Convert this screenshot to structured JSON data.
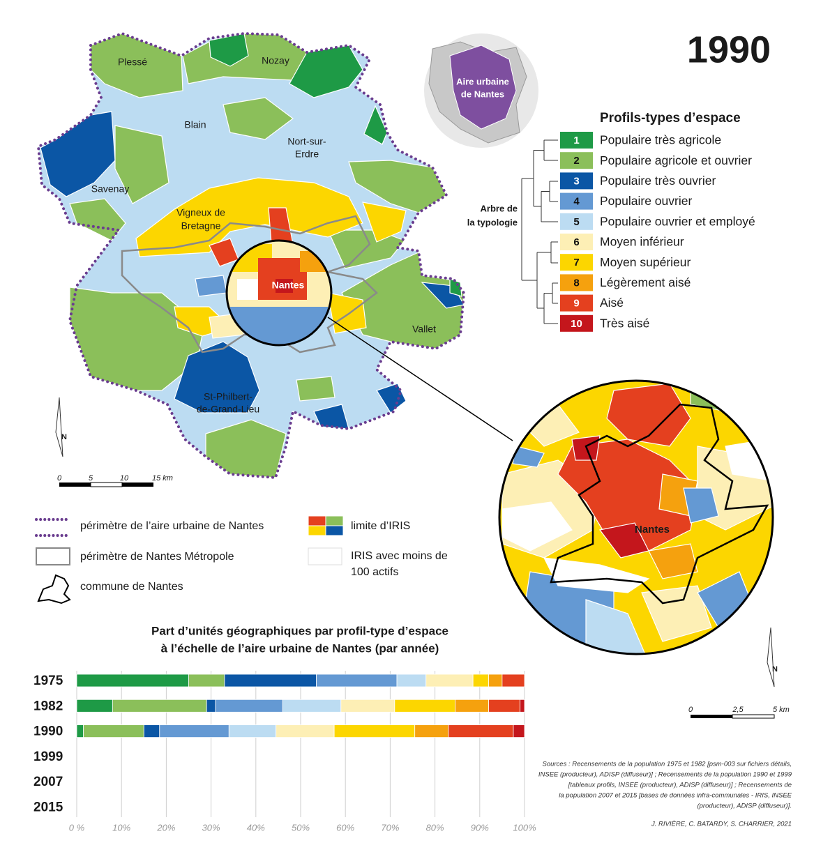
{
  "title": "1990",
  "inset": {
    "lines": [
      "Aire urbaine",
      "de Nantes"
    ]
  },
  "map_labels": [
    {
      "lines": [
        "Plessé"
      ]
    },
    {
      "lines": [
        "Nozay"
      ]
    },
    {
      "lines": [
        "Blain"
      ]
    },
    {
      "lines": [
        "Nort-sur-",
        "Erdre"
      ]
    },
    {
      "lines": [
        "Savenay"
      ]
    },
    {
      "lines": [
        "Vigneux de",
        "Bretagne"
      ]
    },
    {
      "lines": [
        "Nantes"
      ]
    },
    {
      "lines": [
        "Vallet"
      ]
    },
    {
      "lines": [
        "St-Philbert-",
        "de-Grand-Lieu"
      ]
    }
  ],
  "zoom_label": "Nantes",
  "north_arrow": "N",
  "scale_main": [
    "0",
    "5",
    "10",
    "15 km"
  ],
  "scale_zoom": [
    "0",
    "2,5",
    "5 km"
  ],
  "typology": {
    "title": "Profils-types d’espace",
    "tree_label": [
      "Arbre de",
      "la typologie"
    ]
  },
  "legend": [
    {
      "lines": [
        "périmètre de l’aire urbaine de Nantes"
      ]
    },
    {
      "lines": [
        "périmètre de Nantes Métropole"
      ]
    },
    {
      "lines": [
        "commune de Nantes"
      ]
    },
    {
      "lines": [
        "limite d’IRIS"
      ]
    },
    {
      "lines": [
        "IRIS avec moins de",
        "100 actifs"
      ]
    }
  ],
  "chart_data": {
    "type": "bar",
    "orientation": "horizontal",
    "stacked": true,
    "title_lines": [
      "Part d’unités géographiques par profil-type d’espace",
      "à l’échelle de l’aire urbaine de Nantes (par année)"
    ],
    "categories": [
      "1975",
      "1982",
      "1990",
      "1999",
      "2007",
      "2015"
    ],
    "series": [
      {
        "key": "1",
        "name": "Populaire très agricole",
        "color": "#1e9a46",
        "values": [
          25,
          8,
          1.5,
          null,
          null,
          null
        ]
      },
      {
        "key": "2",
        "name": "Populaire agricole et ouvrier",
        "color": "#8bbf5a",
        "values": [
          8,
          21,
          13.5,
          null,
          null,
          null
        ]
      },
      {
        "key": "3",
        "name": "Populaire très ouvrier",
        "color": "#0b56a5",
        "values": [
          20.5,
          2,
          3.5,
          null,
          null,
          null
        ]
      },
      {
        "key": "4",
        "name": "Populaire ouvrier",
        "color": "#6499d3",
        "values": [
          18,
          15,
          15.5,
          null,
          null,
          null
        ]
      },
      {
        "key": "5",
        "name": "Populaire ouvrier et employé",
        "color": "#bcdcf2",
        "values": [
          6.5,
          13,
          10.5,
          null,
          null,
          null
        ]
      },
      {
        "key": "6",
        "name": "Moyen inférieur",
        "color": "#fdefb5",
        "values": [
          10.5,
          12,
          13,
          null,
          null,
          null
        ]
      },
      {
        "key": "7",
        "name": "Moyen supérieur",
        "color": "#fcd600",
        "values": [
          3.5,
          13.5,
          18,
          null,
          null,
          null
        ]
      },
      {
        "key": "8",
        "name": "Légèrement aisé",
        "color": "#f5a10e",
        "values": [
          3,
          7.5,
          7.5,
          null,
          null,
          null
        ]
      },
      {
        "key": "9",
        "name": "Aisé",
        "color": "#e4401f",
        "values": [
          5,
          7,
          14.5,
          null,
          null,
          null
        ]
      },
      {
        "key": "10",
        "name": "Très aisé",
        "color": "#c4161c",
        "values": [
          0,
          1,
          2.5,
          null,
          null,
          null
        ]
      }
    ],
    "xlim": [
      0,
      100
    ],
    "xticks": [
      {
        "value": 0,
        "label": "0 %"
      },
      {
        "value": 10,
        "label": "10%"
      },
      {
        "value": 20,
        "label": "20%"
      },
      {
        "value": 30,
        "label": "30%"
      },
      {
        "value": 40,
        "label": "40%"
      },
      {
        "value": 50,
        "label": "50%"
      },
      {
        "value": 60,
        "label": "60%"
      },
      {
        "value": 70,
        "label": "70%"
      },
      {
        "value": 80,
        "label": "80%"
      },
      {
        "value": 90,
        "label": "90%"
      },
      {
        "value": 100,
        "label": "100%"
      }
    ],
    "grid": true
  },
  "sources": [
    "Sources : Recensements de la population 1975 et 1982 [psm-003 sur fichiers détails,",
    "INSEE (producteur), ADISP (diffuseur)] ; Recensements de la population 1990 et 1999",
    "[tableaux profils, INSEE (producteur), ADISP (diffuseur)] ; Recensements de",
    "la population 2007 et 2015 [bases de données infra-communales - IRIS, INSEE",
    "(producteur), ADISP (diffuseur)]."
  ],
  "credits": "J. RIVIÈRE, C. BATARDY, S. CHARRIER, 2021"
}
